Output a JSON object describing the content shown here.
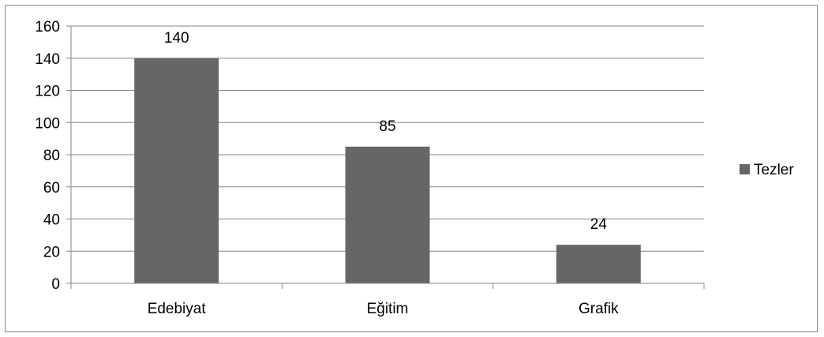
{
  "chart_data": {
    "type": "bar",
    "categories": [
      "Edebiyat",
      "Eğitim",
      "Grafik"
    ],
    "series": [
      {
        "name": "Tezler",
        "values": [
          140,
          85,
          24
        ],
        "color": "#666666"
      }
    ],
    "data_labels": [
      "140",
      "85",
      "24"
    ],
    "ylim": [
      0,
      160
    ],
    "yticks": [
      0,
      20,
      40,
      60,
      80,
      100,
      120,
      140,
      160
    ],
    "title": "",
    "xlabel": "",
    "ylabel": "",
    "grid": true,
    "legend_position": "right",
    "colors": {
      "bar": "#666666",
      "grid": "#868686",
      "axis": "#868686"
    }
  }
}
